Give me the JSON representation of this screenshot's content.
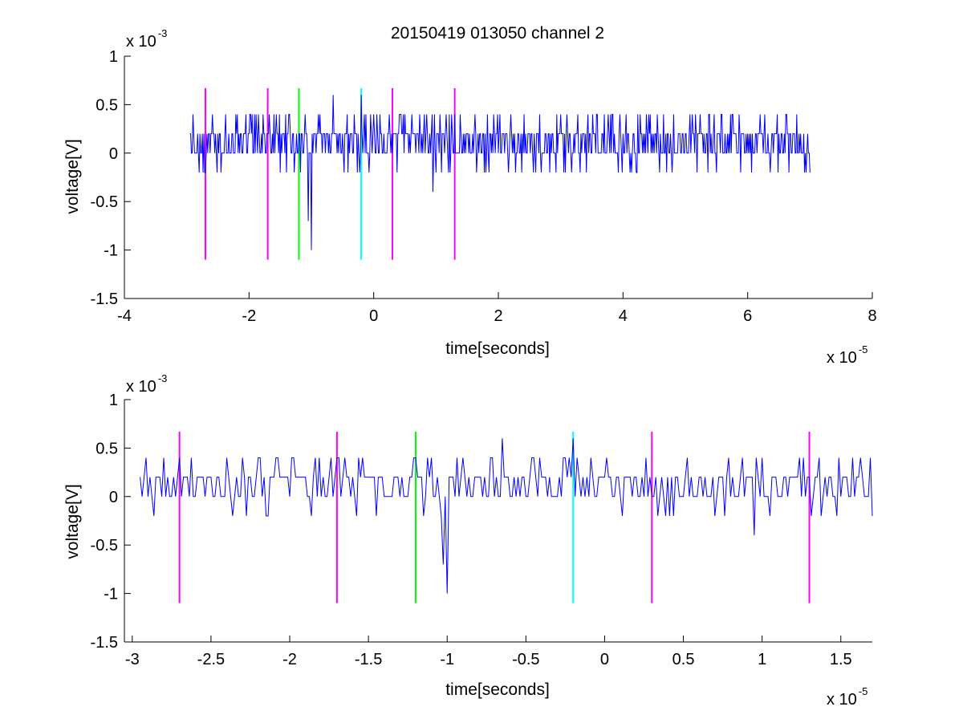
{
  "title": "20150419 013050 channel 2",
  "colors": {
    "signal": "#0000ff",
    "magenta": "#ff00ff",
    "green": "#00ff00",
    "cyan": "#00ffff",
    "axes": "#000000"
  },
  "chart_data": [
    {
      "type": "line",
      "title": "20150419 013050 channel 2",
      "xlabel": "time[seconds]",
      "ylabel": "voltage[V]",
      "x_exponent_label": "x 10",
      "x_exponent": "-5",
      "y_exponent_label": "x 10",
      "y_exponent": "-3",
      "xlim": [
        -4,
        8
      ],
      "ylim": [
        -1.5,
        1
      ],
      "xticks": [
        -4,
        -2,
        0,
        2,
        4,
        6,
        8
      ],
      "xtick_labels": [
        "-4",
        "-2",
        "0",
        "2",
        "4",
        "6",
        "8"
      ],
      "yticks": [
        -1.5,
        -1,
        -0.5,
        0,
        0.5,
        1
      ],
      "ytick_labels": [
        "-1.5",
        "-1",
        "-0.5",
        "0",
        "0.5",
        "1"
      ],
      "grid": false,
      "series": [
        {
          "color": "#0000ff",
          "x_range": [
            -2.95,
            7.0
          ],
          "noise_levels": [
            0,
            0.2,
            0.4,
            -0.2
          ],
          "spikes": [
            {
              "x": -1.0,
              "y": -1.0
            },
            {
              "x": -1.05,
              "y": -0.7
            },
            {
              "x": -0.65,
              "y": 0.6
            },
            {
              "x": -0.2,
              "y": 0.6
            },
            {
              "x": 0.95,
              "y": -0.4
            }
          ]
        }
      ],
      "markers": [
        {
          "x": -2.7,
          "color": "#ff00ff",
          "y_range": [
            -1.1,
            0.67
          ]
        },
        {
          "x": -1.7,
          "color": "#ff00ff",
          "y_range": [
            -1.1,
            0.67
          ]
        },
        {
          "x": -1.2,
          "color": "#00ff00",
          "y_range": [
            -1.1,
            0.67
          ]
        },
        {
          "x": -0.2,
          "color": "#00ffff",
          "y_range": [
            -1.1,
            0.67
          ]
        },
        {
          "x": 0.3,
          "color": "#ff00ff",
          "y_range": [
            -1.1,
            0.67
          ]
        },
        {
          "x": 1.3,
          "color": "#ff00ff",
          "y_range": [
            -1.1,
            0.67
          ]
        }
      ]
    },
    {
      "type": "line",
      "xlabel": "time[seconds]",
      "ylabel": "voltage[V]",
      "x_exponent_label": "x 10",
      "x_exponent": "-5",
      "y_exponent_label": "x 10",
      "y_exponent": "-3",
      "xlim": [
        -3.05,
        1.7
      ],
      "ylim": [
        -1.5,
        1
      ],
      "xticks": [
        -3,
        -2.5,
        -2,
        -1.5,
        -1,
        -0.5,
        0,
        0.5,
        1,
        1.5
      ],
      "xtick_labels": [
        "-3",
        "-2.5",
        "-2",
        "-1.5",
        "-1",
        "-0.5",
        "0",
        "0.5",
        "1",
        "1.5"
      ],
      "yticks": [
        -1.5,
        -1,
        -0.5,
        0,
        0.5,
        1
      ],
      "ytick_labels": [
        "-1.5",
        "-1",
        "-0.5",
        "0",
        "0.5",
        "1"
      ],
      "grid": false,
      "series": [
        {
          "color": "#0000ff",
          "x_range": [
            -2.95,
            1.7
          ],
          "noise_levels": [
            0,
            0.2,
            0.4,
            -0.2
          ],
          "spikes": [
            {
              "x": -1.0,
              "y": -1.0
            },
            {
              "x": -1.02,
              "y": -0.7
            },
            {
              "x": -0.65,
              "y": 0.6
            },
            {
              "x": -0.2,
              "y": 0.6
            },
            {
              "x": 0.95,
              "y": -0.4
            }
          ],
          "end_value": -0.2
        }
      ],
      "markers": [
        {
          "x": -2.7,
          "color": "#ff00ff",
          "y_range": [
            -1.1,
            0.67
          ]
        },
        {
          "x": -1.7,
          "color": "#ff00ff",
          "y_range": [
            -1.1,
            0.67
          ]
        },
        {
          "x": -1.2,
          "color": "#00ff00",
          "y_range": [
            -1.1,
            0.67
          ]
        },
        {
          "x": -0.2,
          "color": "#00ffff",
          "y_range": [
            -1.1,
            0.67
          ]
        },
        {
          "x": 0.3,
          "color": "#ff00ff",
          "y_range": [
            -1.1,
            0.67
          ]
        },
        {
          "x": 1.3,
          "color": "#ff00ff",
          "y_range": [
            -1.1,
            0.67
          ]
        }
      ]
    }
  ]
}
